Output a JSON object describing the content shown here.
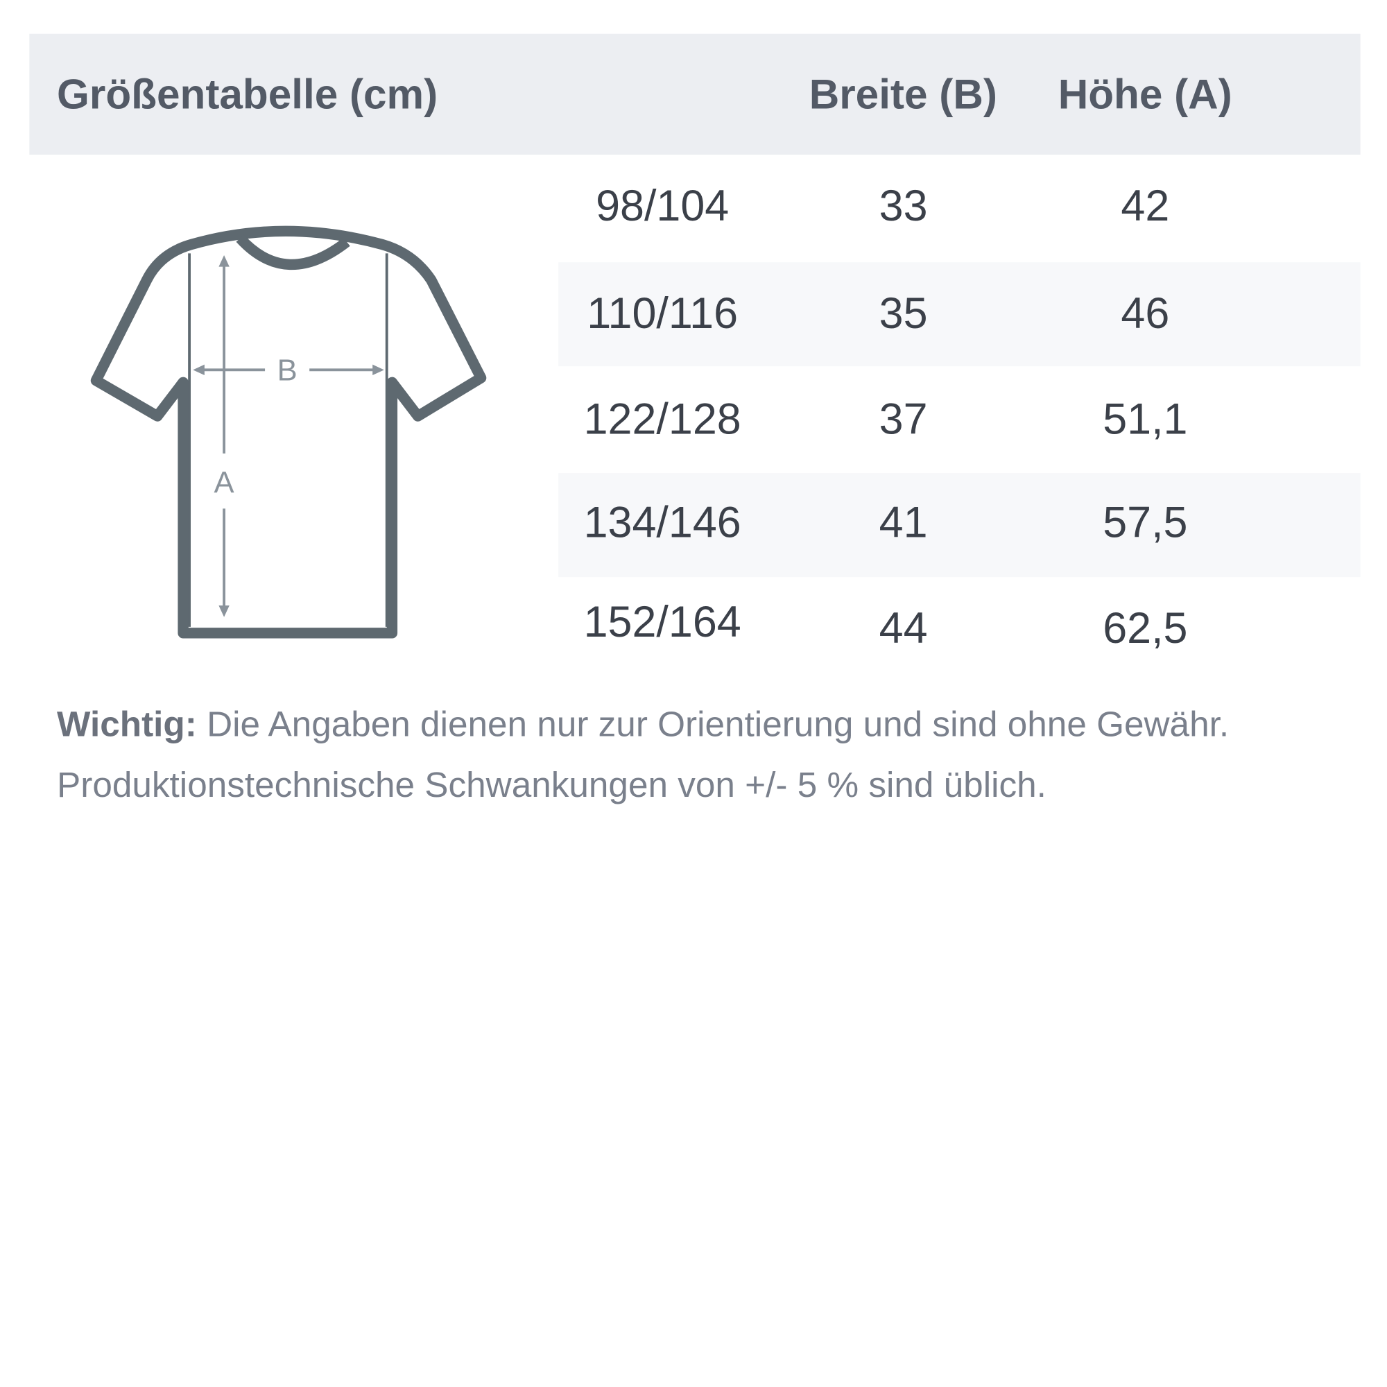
{
  "header": {
    "title": "Größentabelle (cm)",
    "col_width": "Breite (B)",
    "col_height": "Höhe (A)"
  },
  "diagram": {
    "label_width": "B",
    "label_height": "A",
    "outline_color": "#5e6970"
  },
  "rows": [
    {
      "size": "98/104",
      "width": "33",
      "height": "42"
    },
    {
      "size": "110/116",
      "width": "35",
      "height": "46"
    },
    {
      "size": "122/128",
      "width": "37",
      "height": "51,1"
    },
    {
      "size": "134/146",
      "width": "41",
      "height": "57,5"
    },
    {
      "size": "152/164",
      "width": "44",
      "height": "62,5"
    }
  ],
  "note": {
    "bold": "Wichtig:",
    "line1": " Die Angaben dienen nur zur Orientierung und sind ohne Gewähr.",
    "line2": "Produktionstechnische Schwankungen von +/- 5 % sind üblich."
  }
}
